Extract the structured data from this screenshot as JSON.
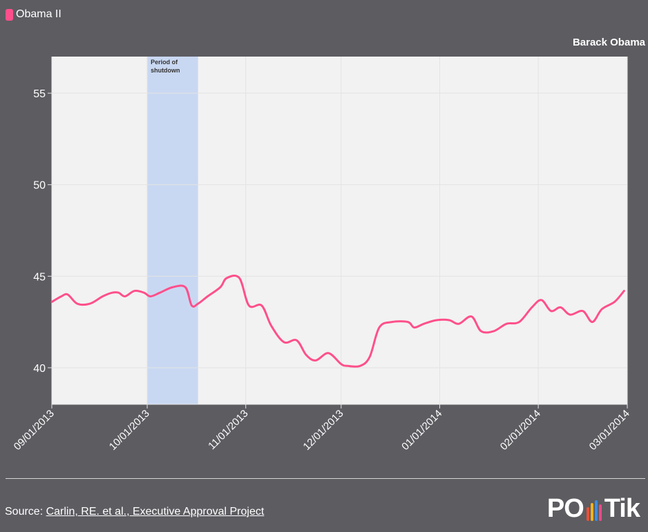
{
  "legend": {
    "label": "Obama II",
    "color": "#ff4f8b"
  },
  "series_title": "Barack Obama",
  "source": {
    "prefix": "Source: ",
    "link_text": "Carlin, RE. et al., Executive Approval Project"
  },
  "logo": {
    "text_left": "PO",
    "text_right": "Tik",
    "bar_colors": [
      "#e8503a",
      "#f5b21a",
      "#3a8ee0",
      "#e94b8a"
    ]
  },
  "chart_data": {
    "type": "line",
    "title": "Barack Obama",
    "xlabel": "",
    "ylabel": "",
    "x_range": [
      "2013-09-01",
      "2014-03-01"
    ],
    "ylim": [
      38,
      57
    ],
    "yticks": [
      40,
      45,
      50,
      55
    ],
    "xticks": [
      "09/01/2013",
      "10/01/2013",
      "11/01/2013",
      "12/01/2013",
      "01/01/2014",
      "02/01/2014",
      "03/01/2014"
    ],
    "grid": true,
    "shaded_region": {
      "start": "2013-10-01",
      "end": "2013-10-17",
      "label_line1": "Period of",
      "label_line2": "shutdown",
      "color": "#c9d8f2"
    },
    "series": [
      {
        "name": "Obama II",
        "color": "#ff4f8b",
        "points": [
          [
            "2013-09-01",
            43.6
          ],
          [
            "2013-09-04",
            43.9
          ],
          [
            "2013-09-06",
            44.0
          ],
          [
            "2013-09-09",
            43.5
          ],
          [
            "2013-09-13",
            43.5
          ],
          [
            "2013-09-17",
            43.9
          ],
          [
            "2013-09-20",
            44.1
          ],
          [
            "2013-09-22",
            44.1
          ],
          [
            "2013-09-24",
            43.9
          ],
          [
            "2013-09-27",
            44.2
          ],
          [
            "2013-09-30",
            44.1
          ],
          [
            "2013-10-02",
            43.9
          ],
          [
            "2013-10-05",
            44.1
          ],
          [
            "2013-10-09",
            44.4
          ],
          [
            "2013-10-13",
            44.4
          ],
          [
            "2013-10-15",
            43.4
          ],
          [
            "2013-10-17",
            43.5
          ],
          [
            "2013-10-20",
            43.9
          ],
          [
            "2013-10-24",
            44.4
          ],
          [
            "2013-10-26",
            44.9
          ],
          [
            "2013-10-30",
            44.9
          ],
          [
            "2013-11-02",
            43.4
          ],
          [
            "2013-11-06",
            43.4
          ],
          [
            "2013-11-09",
            42.3
          ],
          [
            "2013-11-13",
            41.4
          ],
          [
            "2013-11-17",
            41.5
          ],
          [
            "2013-11-20",
            40.7
          ],
          [
            "2013-11-23",
            40.4
          ],
          [
            "2013-11-27",
            40.8
          ],
          [
            "2013-12-01",
            40.2
          ],
          [
            "2013-12-03",
            40.1
          ],
          [
            "2013-12-07",
            40.1
          ],
          [
            "2013-12-10",
            40.6
          ],
          [
            "2013-12-13",
            42.2
          ],
          [
            "2013-12-17",
            42.5
          ],
          [
            "2013-12-22",
            42.5
          ],
          [
            "2013-12-24",
            42.2
          ],
          [
            "2013-12-27",
            42.4
          ],
          [
            "2013-12-31",
            42.6
          ],
          [
            "2014-01-04",
            42.6
          ],
          [
            "2014-01-07",
            42.4
          ],
          [
            "2014-01-11",
            42.8
          ],
          [
            "2014-01-14",
            42.0
          ],
          [
            "2014-01-18",
            42.0
          ],
          [
            "2014-01-22",
            42.4
          ],
          [
            "2014-01-26",
            42.5
          ],
          [
            "2014-01-30",
            43.3
          ],
          [
            "2014-02-02",
            43.7
          ],
          [
            "2014-02-05",
            43.1
          ],
          [
            "2014-02-08",
            43.3
          ],
          [
            "2014-02-11",
            42.9
          ],
          [
            "2014-02-15",
            43.1
          ],
          [
            "2014-02-18",
            42.5
          ],
          [
            "2014-02-21",
            43.2
          ],
          [
            "2014-02-25",
            43.6
          ],
          [
            "2014-02-28",
            44.2
          ]
        ]
      }
    ]
  }
}
